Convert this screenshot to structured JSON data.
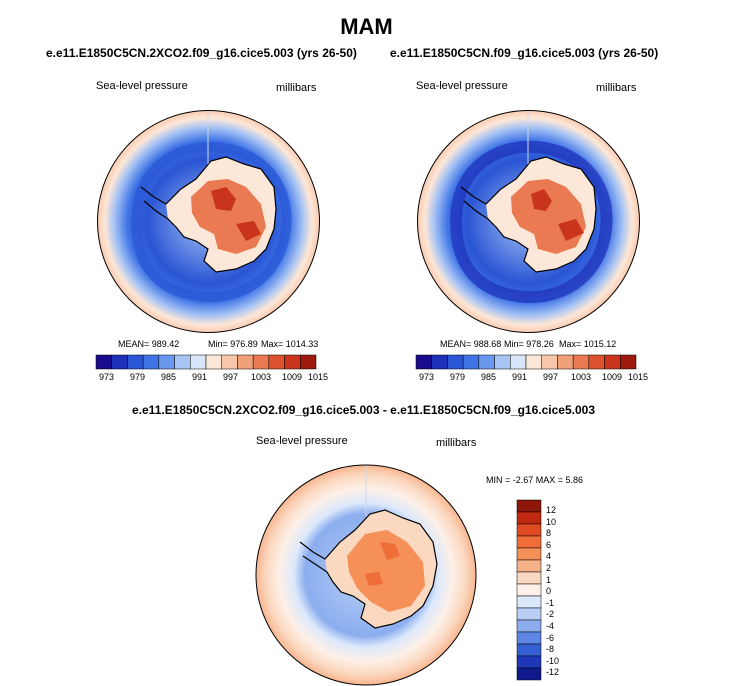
{
  "page": {
    "title": "MAM"
  },
  "panels": [
    {
      "case_title": "e.e11.E1850C5CN.2XCO2.f09_g16.cice5.003 (yrs 26-50)",
      "variable_label": "Sea-level pressure",
      "units_label": "millibars",
      "stats": {
        "mean": "MEAN= 989.42",
        "min": "Min= 976.89",
        "max": "Max= 1014.33"
      },
      "colorbar_labels": [
        "973",
        "979",
        "985",
        "991",
        "997",
        "1003",
        "1009",
        "1015"
      ]
    },
    {
      "case_title": "e.e11.E1850C5CN.f09_g16.cice5.003 (yrs 26-50)",
      "variable_label": "Sea-level pressure",
      "units_label": "millibars",
      "stats": {
        "mean": "MEAN= 988.68",
        "min": "Min= 978.26",
        "max": "Max= 1015.12"
      },
      "colorbar_labels": [
        "973",
        "979",
        "985",
        "991",
        "997",
        "1003",
        "1009",
        "1015"
      ]
    }
  ],
  "difference_panel": {
    "case_title": "e.e11.E1850C5CN.2XCO2.f09_g16.cice5.003 - e.e11.E1850C5CN.f09_g16.cice5.003",
    "variable_label": "Sea-level pressure",
    "units_label": "millibars",
    "stats": "MIN =  -2.67 MAX =  5.86",
    "colorbar_labels": [
      "12",
      "10",
      "8",
      "6",
      "4",
      "2",
      "1",
      "0",
      "-1",
      "-2",
      "-4",
      "-6",
      "-8",
      "-10",
      "-12"
    ]
  },
  "colors": {
    "slp_colorbar": [
      "#1a0a8c",
      "#1e2fb8",
      "#2a55d4",
      "#3f74e6",
      "#6a98ee",
      "#a8c4f4",
      "#d8e6fb",
      "#fde7d8",
      "#f8c6aa",
      "#f2a07c",
      "#ea7a52",
      "#de5230",
      "#c8341c",
      "#9c1a0e"
    ],
    "diff_colorbar": [
      "#8c1608",
      "#c0280f",
      "#e04a20",
      "#ef6e38",
      "#f49058",
      "#f8b28a",
      "#fbd8c0",
      "#fdf0e8",
      "#dce8fb",
      "#b8d0f6",
      "#8caeef",
      "#5d86e4",
      "#3560d4",
      "#1e38b8",
      "#0e1a8c"
    ]
  }
}
